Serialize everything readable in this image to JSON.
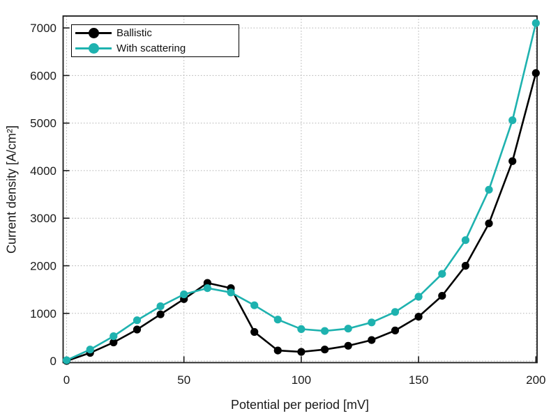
{
  "colors": {
    "background": "#ffffff",
    "axis": "#1a1a1a",
    "grid": "#b3b3b3",
    "ballistic": "#000000",
    "scattering": "#1EB2AF"
  },
  "chart_data": {
    "type": "line",
    "title": "",
    "xlabel": "Potential per period [mV]",
    "ylabel": "Current density [A/cm²]",
    "grid": true,
    "grid_style": "dotted",
    "legend_position": "upper-left",
    "xlim": [
      -1.5,
      200.5
    ],
    "ylim": [
      -35,
      7250
    ],
    "xticks": [
      0,
      50,
      100,
      150,
      200
    ],
    "yticks": [
      0,
      1000,
      2000,
      3000,
      4000,
      5000,
      6000,
      7000
    ],
    "x": [
      0,
      10,
      20,
      30,
      40,
      50,
      60,
      70,
      80,
      90,
      100,
      110,
      120,
      130,
      140,
      150,
      160,
      170,
      180,
      190,
      200
    ],
    "series": [
      {
        "name": "Ballistic",
        "color": "#000000",
        "marker": "circle",
        "values": [
          0,
          170,
          390,
          660,
          980,
          1300,
          1640,
          1530,
          610,
          220,
          190,
          240,
          320,
          440,
          640,
          930,
          1370,
          2000,
          2890,
          4200,
          6050
        ]
      },
      {
        "name": "With scattering",
        "color": "#1EB2AF",
        "marker": "circle",
        "values": [
          15,
          240,
          520,
          855,
          1150,
          1400,
          1530,
          1440,
          1170,
          870,
          670,
          630,
          680,
          810,
          1030,
          1350,
          1830,
          2540,
          3600,
          5060,
          7100
        ]
      }
    ]
  }
}
